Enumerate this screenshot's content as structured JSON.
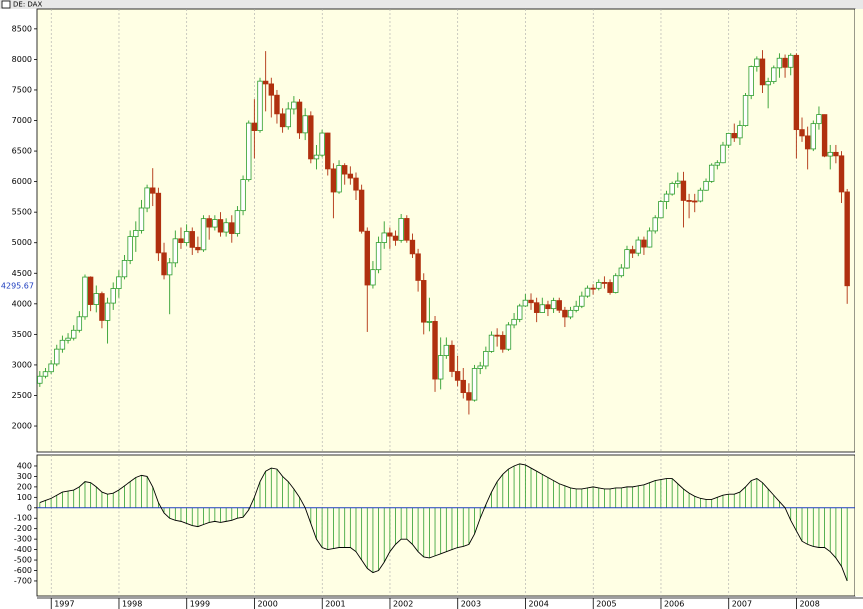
{
  "chart_data": {
    "type": "candlestick",
    "title": "DE: DAX",
    "xlim": [
      1996.79,
      2008.79
    ],
    "xticks": [
      1997,
      1998,
      1999,
      2000,
      2001,
      2002,
      2003,
      2004,
      2005,
      2006,
      2007,
      2008
    ],
    "ylim": [
      1575,
      8825
    ],
    "yticks": [
      2000,
      2500,
      3000,
      3500,
      4000,
      4500,
      5000,
      5500,
      6000,
      6500,
      7000,
      7500,
      8000,
      8500
    ],
    "last_price": 4295.67,
    "up_color": "#2e9e2e",
    "down_color": "#b0300f",
    "grid": true,
    "open": [
      2700,
      2815,
      2889,
      3016,
      3258,
      3403,
      3438,
      3567,
      3788,
      4438,
      3988,
      4168,
      3728,
      4012,
      4250,
      4442,
      4710,
      5100,
      5200,
      5568,
      5897,
      5810,
      4834,
      4474,
      4671,
      5064,
      5002,
      5184,
      4924,
      4884,
      5394,
      5256,
      5379,
      5174,
      5327,
      5150,
      5525,
      6033,
      6958,
      6835,
      7644,
      7599,
      7414,
      7109,
      6898,
      7189,
      7302,
      6798,
      7078,
      6372,
      6433,
      6795,
      6208,
      5830,
      6264,
      6123,
      6058,
      5861,
      5188,
      4308,
      4559,
      5003,
      5160,
      5108,
      5039,
      5397,
      5041,
      4818,
      4383,
      3700,
      3712,
      2769,
      3153,
      3321,
      2893,
      2748,
      2547,
      2424,
      2942,
      2983,
      3221,
      3487,
      3484,
      3257,
      3655,
      3746,
      3965,
      4059,
      4018,
      3857,
      3985,
      3921,
      4053,
      3895,
      3785,
      3893,
      3960,
      4126,
      4256,
      4254,
      4350,
      4349,
      4185,
      4460,
      4586,
      4887,
      4829,
      5044,
      4929,
      5193,
      5408,
      5674,
      5796,
      5970,
      6009,
      5692,
      5683,
      5682,
      5859,
      6004,
      6269,
      6309,
      6597,
      6789,
      6716,
      6917,
      7409,
      7883,
      8007,
      7584,
      7638,
      7862,
      8019,
      7871,
      8067,
      6851,
      6748,
      6535,
      6949,
      7097,
      6418,
      6479,
      6422,
      5831
    ],
    "high": [
      2900,
      2950,
      3080,
      3330,
      3480,
      3520,
      3650,
      3880,
      4480,
      4450,
      4300,
      4200,
      4100,
      4350,
      4550,
      4800,
      5200,
      5350,
      5700,
      5950,
      6220,
      5900,
      5000,
      4750,
      5200,
      5250,
      5300,
      5250,
      5100,
      5450,
      5450,
      5450,
      5500,
      5400,
      5450,
      5600,
      6100,
      7000,
      7350,
      7700,
      8136,
      7700,
      7500,
      7200,
      7300,
      7400,
      7350,
      7200,
      7150,
      6600,
      6850,
      6800,
      6300,
      6350,
      6300,
      6250,
      6150,
      5950,
      5250,
      4700,
      5100,
      5350,
      5250,
      5200,
      5470,
      5450,
      5150,
      4900,
      4500,
      4100,
      3800,
      3450,
      3450,
      3400,
      3150,
      2950,
      2700,
      3000,
      3050,
      3300,
      3550,
      3600,
      3550,
      3700,
      3850,
      4000,
      4160,
      4170,
      4100,
      4100,
      4050,
      4100,
      4100,
      3950,
      3950,
      4050,
      4200,
      4300,
      4320,
      4400,
      4450,
      4400,
      4500,
      4650,
      4950,
      4950,
      5100,
      5100,
      5250,
      5450,
      5700,
      5850,
      6000,
      6150,
      6160,
      5800,
      5800,
      5900,
      6050,
      6300,
      6350,
      6650,
      6800,
      6950,
      7000,
      7450,
      7900,
      8050,
      8151,
      7700,
      7900,
      8100,
      8080,
      8100,
      8100,
      7050,
      6900,
      7000,
      7230,
      7100,
      6600,
      6600,
      6500,
      5880
    ],
    "low": [
      2640,
      2780,
      2850,
      2980,
      3200,
      3350,
      3400,
      3530,
      3740,
      3880,
      3860,
      3600,
      3350,
      3900,
      4100,
      4400,
      4650,
      4850,
      5150,
      5500,
      5600,
      4700,
      4400,
      3830,
      4600,
      4900,
      4950,
      4800,
      4830,
      4850,
      5050,
      5200,
      5100,
      5100,
      5000,
      5100,
      5450,
      6000,
      6380,
      6800,
      7150,
      7050,
      6950,
      6800,
      6850,
      7100,
      6700,
      6680,
      6300,
      6200,
      6400,
      6100,
      5400,
      5800,
      5950,
      5950,
      5700,
      5150,
      3540,
      4250,
      4500,
      4900,
      4900,
      4950,
      5000,
      5000,
      4750,
      4200,
      3500,
      3550,
      2560,
      2600,
      3100,
      2800,
      2650,
      2450,
      2189,
      2400,
      2850,
      2930,
      3200,
      3300,
      3200,
      3230,
      3600,
      3700,
      3950,
      3900,
      3700,
      3850,
      3800,
      3850,
      3850,
      3620,
      3750,
      3860,
      3930,
      4100,
      4150,
      4220,
      4250,
      4150,
      4170,
      4430,
      4570,
      4750,
      4780,
      4800,
      4920,
      5150,
      5400,
      5550,
      5770,
      5900,
      5250,
      5400,
      5500,
      5660,
      5850,
      5980,
      6200,
      6300,
      6550,
      6650,
      6600,
      6900,
      7350,
      7800,
      7450,
      7200,
      7600,
      7700,
      7700,
      7740,
      6380,
      6650,
      6200,
      6500,
      6850,
      6400,
      6200,
      6300,
      5650,
      4000
    ],
    "close": [
      2815,
      2889,
      3016,
      3258,
      3403,
      3438,
      3567,
      3788,
      4438,
      3988,
      4168,
      3728,
      4012,
      4250,
      4442,
      4710,
      5100,
      5200,
      5568,
      5897,
      5810,
      4834,
      4474,
      4671,
      5064,
      5002,
      5184,
      4924,
      4884,
      5394,
      5256,
      5379,
      5174,
      5327,
      5150,
      5525,
      6033,
      6958,
      6835,
      7644,
      7599,
      7414,
      7109,
      6898,
      7189,
      7302,
      6798,
      7078,
      6372,
      6433,
      6795,
      6208,
      5830,
      6264,
      6123,
      6058,
      5861,
      5188,
      4308,
      4559,
      5003,
      5160,
      5108,
      5039,
      5397,
      5041,
      4818,
      4383,
      3700,
      3712,
      2769,
      3153,
      3321,
      2893,
      2748,
      2547,
      2424,
      2942,
      2983,
      3221,
      3487,
      3484,
      3257,
      3655,
      3746,
      3965,
      4059,
      4018,
      3857,
      3985,
      3921,
      4053,
      3895,
      3785,
      3893,
      3960,
      4126,
      4256,
      4254,
      4350,
      4349,
      4185,
      4460,
      4586,
      4887,
      4829,
      5044,
      4929,
      5193,
      5408,
      5674,
      5796,
      5970,
      6009,
      5692,
      5683,
      5682,
      5859,
      6004,
      6269,
      6309,
      6597,
      6789,
      6716,
      6917,
      7409,
      7883,
      8007,
      7584,
      7638,
      7862,
      8019,
      7871,
      8067,
      6851,
      6748,
      6535,
      6949,
      7097,
      6418,
      6479,
      6422,
      5831,
      4295.67
    ],
    "indicator": {
      "type": "histogram",
      "ylim": [
        -844,
        505
      ],
      "yticks": [
        400,
        300,
        200,
        100,
        0,
        -100,
        -200,
        -300,
        -400,
        -500,
        -600,
        -700
      ],
      "color": "#2e9e2e",
      "line_color": "#000000",
      "zero_color": "#1f3fbf",
      "values": [
        50,
        70,
        90,
        120,
        150,
        160,
        170,
        200,
        250,
        240,
        200,
        150,
        130,
        140,
        170,
        210,
        250,
        290,
        310,
        300,
        200,
        50,
        -50,
        -100,
        -120,
        -130,
        -150,
        -170,
        -180,
        -160,
        -140,
        -130,
        -140,
        -130,
        -120,
        -100,
        -90,
        -20,
        100,
        250,
        350,
        380,
        370,
        300,
        250,
        180,
        100,
        0,
        -150,
        -300,
        -380,
        -400,
        -390,
        -380,
        -380,
        -380,
        -420,
        -500,
        -580,
        -620,
        -600,
        -520,
        -420,
        -350,
        -300,
        -300,
        -350,
        -420,
        -470,
        -480,
        -460,
        -440,
        -420,
        -400,
        -380,
        -370,
        -350,
        -250,
        -100,
        30,
        150,
        250,
        320,
        370,
        400,
        420,
        410,
        380,
        350,
        320,
        290,
        260,
        230,
        210,
        190,
        180,
        180,
        190,
        200,
        190,
        180,
        180,
        190,
        190,
        200,
        200,
        210,
        220,
        240,
        260,
        270,
        280,
        280,
        230,
        180,
        140,
        110,
        90,
        80,
        80,
        100,
        120,
        130,
        130,
        150,
        200,
        260,
        280,
        240,
        180,
        120,
        60,
        0,
        -120,
        -220,
        -320,
        -350,
        -370,
        -380,
        -380,
        -420,
        -480,
        -560,
        -700
      ]
    }
  }
}
